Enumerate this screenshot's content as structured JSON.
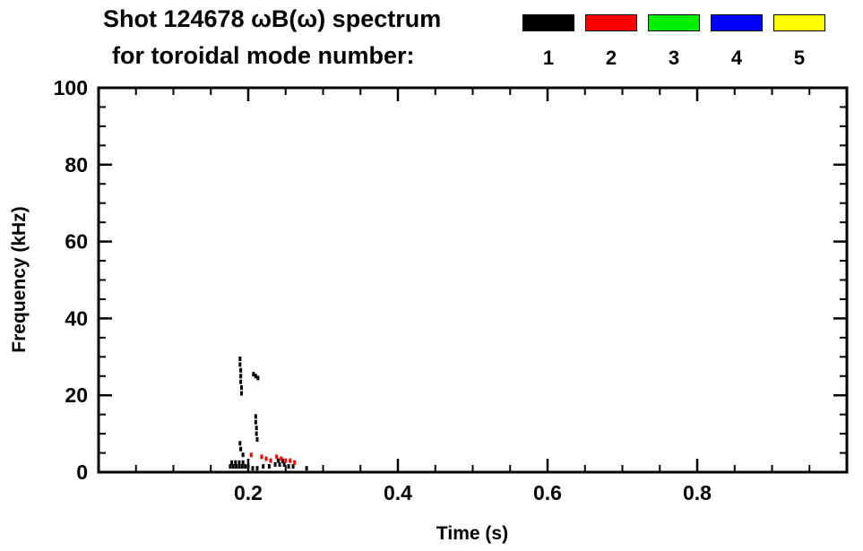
{
  "title": {
    "line1": "Shot 124678 ωB(ω) spectrum",
    "line2": "for toroidal mode number:"
  },
  "legend": {
    "entries": [
      {
        "label": "1",
        "color": "#000000"
      },
      {
        "label": "2",
        "color": "#ff0000"
      },
      {
        "label": "3",
        "color": "#00ee00"
      },
      {
        "label": "4",
        "color": "#0000ff"
      },
      {
        "label": "5",
        "color": "#ffff00"
      }
    ]
  },
  "chart_data": {
    "type": "scatter",
    "title": "Shot 124678 ωB(ω) spectrum for toroidal mode number:",
    "xlabel": "Time (s)",
    "ylabel": "Frequency (kHz)",
    "xlim": [
      0,
      1.0
    ],
    "ylim": [
      0,
      100
    ],
    "x_major_ticks": [
      0.2,
      0.4,
      0.6,
      0.8
    ],
    "x_tick_labels": [
      "0.2",
      "0.4",
      "0.6",
      "0.8"
    ],
    "x_minor_step": 0.05,
    "y_major_ticks": [
      0,
      20,
      40,
      60,
      80,
      100
    ],
    "y_tick_labels": [
      "0",
      "20",
      "40",
      "60",
      "80",
      "100"
    ],
    "y_minor_step": 5,
    "grid": false,
    "legend_position": "top-right",
    "background": "#ffffff",
    "series": [
      {
        "name": "n=1",
        "color": "#000000",
        "points": [
          [
            0.189,
            29.5
          ],
          [
            0.189,
            28
          ],
          [
            0.19,
            26.5
          ],
          [
            0.19,
            25
          ],
          [
            0.19,
            23.5
          ],
          [
            0.191,
            22
          ],
          [
            0.191,
            20.5
          ],
          [
            0.207,
            25.5
          ],
          [
            0.21,
            25
          ],
          [
            0.213,
            24.5
          ],
          [
            0.21,
            14.5
          ],
          [
            0.21,
            13
          ],
          [
            0.211,
            11.5
          ],
          [
            0.211,
            10
          ],
          [
            0.212,
            8.5
          ],
          [
            0.189,
            7.5
          ],
          [
            0.19,
            6
          ],
          [
            0.193,
            4.5
          ],
          [
            0.176,
            1.5
          ],
          [
            0.18,
            1.5
          ],
          [
            0.184,
            1.5
          ],
          [
            0.188,
            1.5
          ],
          [
            0.192,
            1.5
          ],
          [
            0.196,
            1.5
          ],
          [
            0.2,
            1.5
          ],
          [
            0.178,
            2.5
          ],
          [
            0.183,
            2.5
          ],
          [
            0.188,
            2.5
          ],
          [
            0.193,
            2.5
          ],
          [
            0.206,
            1
          ],
          [
            0.212,
            1
          ],
          [
            0.22,
            1.5
          ],
          [
            0.228,
            1.5
          ],
          [
            0.236,
            2
          ],
          [
            0.242,
            2
          ],
          [
            0.248,
            2
          ],
          [
            0.254,
            1.5
          ],
          [
            0.26,
            1.5
          ],
          [
            0.24,
            3
          ],
          [
            0.246,
            3
          ],
          [
            0.278,
            1
          ]
        ]
      },
      {
        "name": "n=2",
        "color": "#ff0000",
        "points": [
          [
            0.204,
            4.5
          ],
          [
            0.218,
            4
          ],
          [
            0.224,
            3.5
          ],
          [
            0.23,
            3
          ],
          [
            0.238,
            4
          ],
          [
            0.244,
            3.5
          ],
          [
            0.25,
            3
          ],
          [
            0.256,
            3
          ],
          [
            0.262,
            2.5
          ]
        ]
      },
      {
        "name": "n=3",
        "color": "#00ee00",
        "points": []
      },
      {
        "name": "n=4",
        "color": "#0000ff",
        "points": []
      },
      {
        "name": "n=5",
        "color": "#ffff00",
        "points": []
      }
    ]
  }
}
